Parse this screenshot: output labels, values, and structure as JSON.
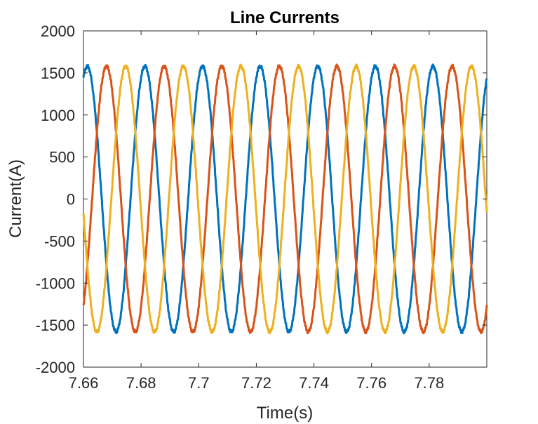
{
  "chart_data": {
    "type": "line",
    "title": "Line Currents",
    "xlabel": "Time(s)",
    "ylabel": "Current(A)",
    "xlim": [
      7.66,
      7.8
    ],
    "ylim": [
      -2000,
      2000
    ],
    "xticks": [
      7.66,
      7.68,
      7.7,
      7.72,
      7.74,
      7.76,
      7.78
    ],
    "xtick_labels": [
      "7.66",
      "7.68",
      "7.7",
      "7.72",
      "7.74",
      "7.76",
      "7.78"
    ],
    "yticks": [
      2000,
      1500,
      1000,
      500,
      0,
      -500,
      -1000,
      -1500,
      -2000
    ],
    "ytick_labels": [
      "2000",
      "1500",
      "1000",
      "500",
      "0",
      "-500",
      "-1000",
      "-1500",
      "-2000"
    ],
    "grid": false,
    "legend": "none",
    "waveform": "three-phase sinusoid",
    "frequency_hz": 50,
    "amplitude": 1580,
    "series": [
      {
        "color": "#0072BD",
        "phase_deg": 66
      },
      {
        "color": "#D95319",
        "phase_deg": -54
      },
      {
        "color": "#EDB120",
        "phase_deg": 186
      }
    ]
  }
}
